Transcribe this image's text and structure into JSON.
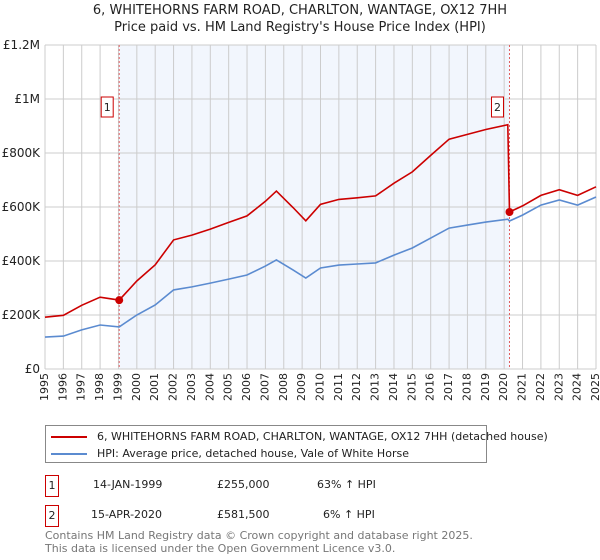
{
  "title": "6, WHITEHORNS FARM ROAD, CHARLTON, WANTAGE, OX12 7HH",
  "subtitle": "Price paid vs. HM Land Registry's House Price Index (HPI)",
  "chart_data": {
    "type": "line",
    "title": "6, WHITEHORNS FARM ROAD, CHARLTON, WANTAGE, OX12 7HH",
    "xlim": [
      1995,
      2025
    ],
    "ylim": [
      0,
      1200000
    ],
    "x_ticks": [
      "1995",
      "1996",
      "1997",
      "1998",
      "1999",
      "2000",
      "2001",
      "2002",
      "2003",
      "2004",
      "2005",
      "2006",
      "2007",
      "2008",
      "2009",
      "2010",
      "2011",
      "2012",
      "2013",
      "2014",
      "2015",
      "2016",
      "2017",
      "2018",
      "2019",
      "2020",
      "2021",
      "2022",
      "2023",
      "2024",
      "2025"
    ],
    "y_ticks": [
      {
        "v": 0,
        "label": "£0"
      },
      {
        "v": 200000,
        "label": "£200K"
      },
      {
        "v": 400000,
        "label": "£400K"
      },
      {
        "v": 600000,
        "label": "£600K"
      },
      {
        "v": 800000,
        "label": "£800K"
      },
      {
        "v": 1000000,
        "label": "£1M"
      },
      {
        "v": 1200000,
        "label": "£1.2M"
      }
    ],
    "grid": true,
    "shaded_range": [
      1999.04,
      2020.29
    ],
    "series": [
      {
        "name": "6, WHITEHORNS FARM ROAD, CHARLTON, WANTAGE, OX12 7HH (detached house)",
        "color": "#cc0000",
        "x": [
          1995,
          1996,
          1997,
          1998,
          1999.04,
          2000,
          2001,
          2002,
          2003,
          2004,
          2005,
          2006,
          2007,
          2007.6,
          2008.5,
          2009.2,
          2010,
          2011,
          2012,
          2013,
          2014,
          2015,
          2016,
          2017,
          2018,
          2019,
          2020.2,
          2020.29,
          2021,
          2022,
          2023,
          2024,
          2025
        ],
        "y": [
          192000,
          199000,
          236000,
          266000,
          255000,
          326000,
          386000,
          478000,
          496000,
          518000,
          543000,
          567000,
          621000,
          659000,
          598000,
          549000,
          610000,
          628000,
          634000,
          641000,
          688000,
          730000,
          791000,
          851000,
          869000,
          887000,
          905000,
          581500,
          604000,
          643000,
          664000,
          643000,
          675000
        ]
      },
      {
        "name": "HPI: Average price, detached house, Vale of White Horse",
        "color": "#5b8bd0",
        "x": [
          1995,
          1996,
          1997,
          1998,
          1999.04,
          2000,
          2001,
          2002,
          2003,
          2004,
          2005,
          2006,
          2007,
          2007.6,
          2008.5,
          2009.2,
          2010,
          2011,
          2012,
          2013,
          2014,
          2015,
          2016,
          2017,
          2018,
          2019,
          2020.2,
          2020.29,
          2021,
          2022,
          2023,
          2024,
          2025
        ],
        "y": [
          118000,
          122000,
          145000,
          163000,
          156000,
          200000,
          237000,
          293000,
          304000,
          318000,
          333000,
          348000,
          381000,
          404000,
          367000,
          337000,
          374000,
          385000,
          389000,
          393000,
          422000,
          448000,
          485000,
          522000,
          533000,
          544000,
          555000,
          548000,
          570000,
          607000,
          626000,
          607000,
          637000
        ]
      }
    ],
    "annotations": [
      {
        "label": "1",
        "x": 1999.04,
        "y": 255000
      },
      {
        "label": "2",
        "x": 2020.29,
        "y": 581500
      }
    ]
  },
  "legend": {
    "items": [
      {
        "label": "6, WHITEHORNS FARM ROAD, CHARLTON, WANTAGE, OX12 7HH (detached house)",
        "color": "#cc0000"
      },
      {
        "label": "HPI: Average price, detached house, Vale of White Horse",
        "color": "#5b8bd0"
      }
    ]
  },
  "transactions": [
    {
      "num": "1",
      "date": "14-JAN-1999",
      "price": "£255,000",
      "hpi": "63% ↑ HPI"
    },
    {
      "num": "2",
      "date": "15-APR-2020",
      "price": "£581,500",
      "hpi": "6% ↑ HPI"
    }
  ],
  "footer": {
    "line1": "Contains HM Land Registry data © Crown copyright and database right 2025.",
    "line2": "This data is licensed under the Open Government Licence v3.0."
  }
}
